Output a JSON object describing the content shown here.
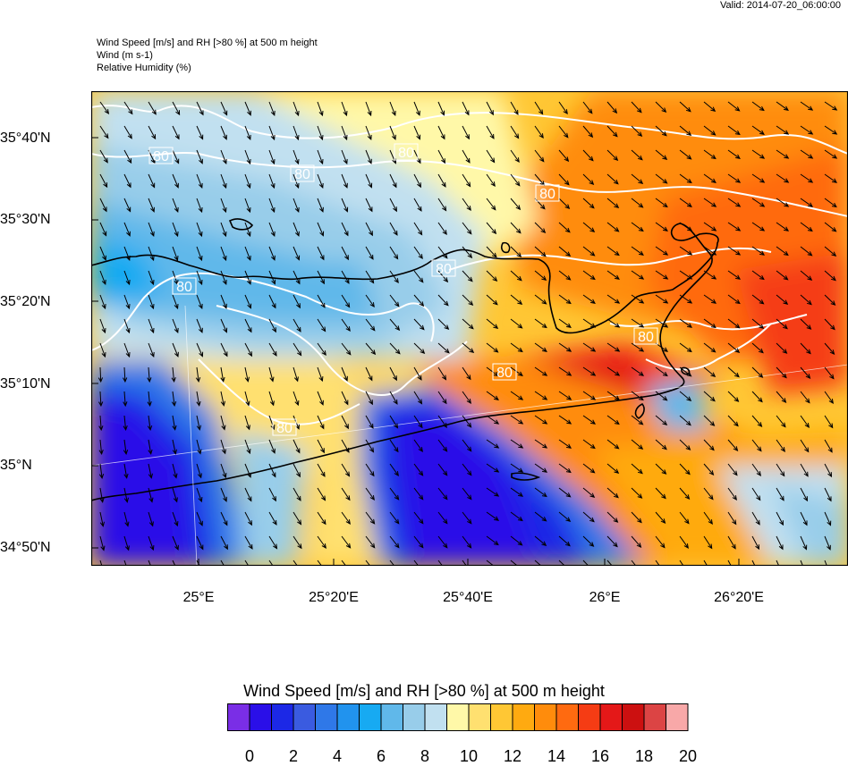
{
  "valid_label": "Valid: 2014-07-20_06:00:00",
  "header": {
    "line1": "Wind Speed [m/s] and RH [>80 %] at 500 m height",
    "line2": "Wind   (m s-1)",
    "line3": "Relative Humidity   (%)"
  },
  "axes": {
    "lat_labels": [
      "35°40'N",
      "35°30'N",
      "35°20'N",
      "35°10'N",
      "35°N",
      "34°50'N"
    ],
    "lon_labels": [
      "25°E",
      "25°20'E",
      "25°40'E",
      "26°E",
      "26°20'E"
    ]
  },
  "contour_label": "80",
  "colorbar": {
    "title": "Wind Speed [m/s] and RH [>80 %] at 500 m height",
    "tick_labels": [
      "0",
      "2",
      "4",
      "6",
      "8",
      "10",
      "12",
      "14",
      "16",
      "18",
      "20"
    ],
    "colors": [
      "#7a2ee6",
      "#2a0fe8",
      "#1c28e6",
      "#3a5be0",
      "#2f78e8",
      "#2193ee",
      "#17aaf2",
      "#60b8ea",
      "#98cdea",
      "#c1e0f0",
      "#fff8a8",
      "#ffe070",
      "#ffc734",
      "#ffaa10",
      "#ff8c0c",
      "#ff6a10",
      "#f53c14",
      "#e41818",
      "#cc1010",
      "#dc4444",
      "#f8a8a8"
    ]
  },
  "colors": {
    "coast": "#000000",
    "rh_contour": "#ffffff",
    "arrow": "#000000"
  }
}
